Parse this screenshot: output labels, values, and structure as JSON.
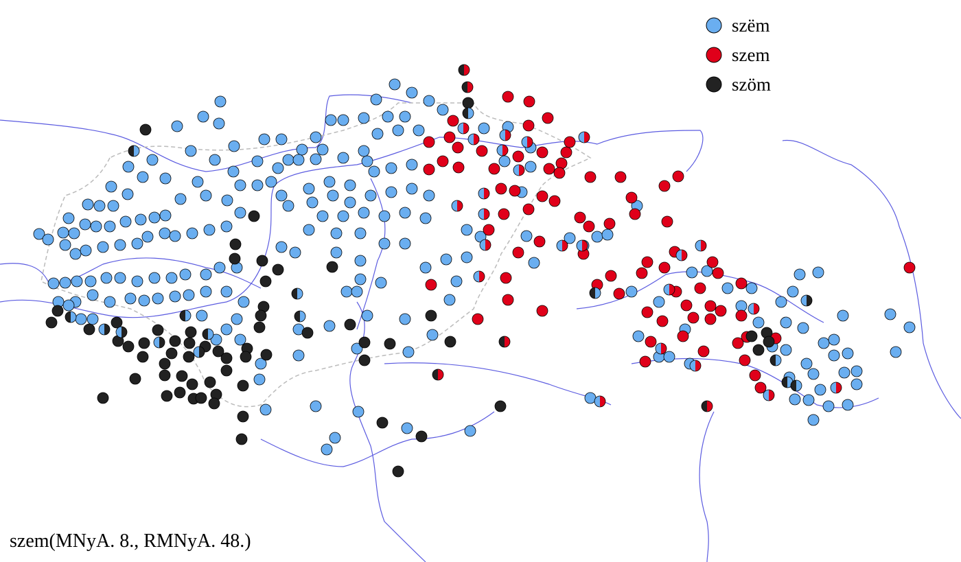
{
  "legend": {
    "items": [
      {
        "label": "szëm",
        "color": "#6aaef0"
      },
      {
        "label": "szem",
        "color": "#e0001a"
      },
      {
        "label": "szöm",
        "color": "#222222"
      }
    ]
  },
  "caption": "szem(MNyA. 8., RMNyA. 48.)"
}
